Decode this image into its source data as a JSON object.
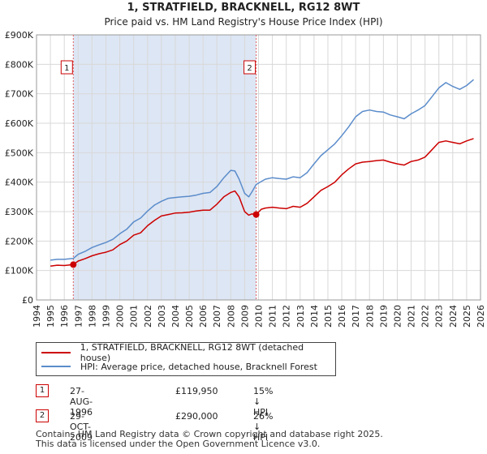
{
  "title": "1, STRATFIELD, BRACKNELL, RG12 8WT",
  "subtitle": "Price paid vs. HM Land Registry's House Price Index (HPI)",
  "chart_data": {
    "type": "line",
    "xlim": [
      1994,
      2026
    ],
    "ylim": [
      0,
      900000
    ],
    "y_ticks": [
      0,
      100000,
      200000,
      300000,
      400000,
      500000,
      600000,
      700000,
      800000,
      900000
    ],
    "y_tick_labels": [
      "£0",
      "£100K",
      "£200K",
      "£300K",
      "£400K",
      "£500K",
      "£600K",
      "£700K",
      "£800K",
      "£900K"
    ],
    "x_ticks": [
      1994,
      1995,
      1996,
      1997,
      1998,
      1999,
      2000,
      2001,
      2002,
      2003,
      2004,
      2005,
      2006,
      2007,
      2008,
      2009,
      2010,
      2011,
      2012,
      2013,
      2014,
      2015,
      2016,
      2017,
      2018,
      2019,
      2020,
      2021,
      2022,
      2023,
      2024,
      2025,
      2026
    ],
    "grid": true,
    "colors": {
      "price_paid": "#cc0000",
      "hpi": "#5b8ccb",
      "shade": "#dde6f4",
      "marker": "#cc0000"
    },
    "series": [
      {
        "name": "1, STRATFIELD, BRACKNELL, RG12 8WT (detached house)",
        "color": "#cc0000",
        "x": [
          1995.0,
          1995.5,
          1996.0,
          1996.65,
          1997.0,
          1997.5,
          1998.0,
          1998.5,
          1999.0,
          1999.5,
          2000.0,
          2000.5,
          2001.0,
          2001.5,
          2002.0,
          2002.5,
          2003.0,
          2003.5,
          2004.0,
          2004.5,
          2005.0,
          2005.5,
          2006.0,
          2006.5,
          2007.0,
          2007.5,
          2008.0,
          2008.3,
          2008.6,
          2009.0,
          2009.3,
          2009.5,
          2009.83,
          2010.2,
          2010.5,
          2011.0,
          2011.5,
          2012.0,
          2012.5,
          2013.0,
          2013.5,
          2014.0,
          2014.5,
          2015.0,
          2015.5,
          2016.0,
          2016.5,
          2017.0,
          2017.5,
          2018.0,
          2018.5,
          2019.0,
          2019.5,
          2020.0,
          2020.5,
          2021.0,
          2021.5,
          2022.0,
          2022.5,
          2023.0,
          2023.5,
          2024.0,
          2024.5,
          2025.0,
          2025.5
        ],
        "values": [
          115000,
          118000,
          117000,
          119950,
          132000,
          140000,
          150000,
          157000,
          162000,
          170000,
          188000,
          200000,
          220000,
          228000,
          252000,
          270000,
          285000,
          290000,
          295000,
          296000,
          298000,
          302000,
          305000,
          305000,
          325000,
          350000,
          365000,
          370000,
          350000,
          300000,
          288000,
          292000,
          290000,
          308000,
          312000,
          315000,
          312000,
          310000,
          318000,
          315000,
          328000,
          350000,
          372000,
          385000,
          400000,
          425000,
          445000,
          462000,
          468000,
          470000,
          473000,
          475000,
          468000,
          462000,
          458000,
          470000,
          475000,
          485000,
          510000,
          535000,
          540000,
          535000,
          530000,
          540000,
          548000
        ]
      },
      {
        "name": "HPI: Average price, detached house, Bracknell Forest",
        "color": "#5b8ccb",
        "x": [
          1995.0,
          1995.5,
          1996.0,
          1996.65,
          1997.0,
          1997.5,
          1998.0,
          1998.5,
          1999.0,
          1999.5,
          2000.0,
          2000.5,
          2001.0,
          2001.5,
          2002.0,
          2002.5,
          2003.0,
          2003.5,
          2004.0,
          2004.5,
          2005.0,
          2005.5,
          2006.0,
          2006.5,
          2007.0,
          2007.5,
          2008.0,
          2008.3,
          2008.6,
          2009.0,
          2009.3,
          2009.5,
          2009.83,
          2010.2,
          2010.5,
          2011.0,
          2011.5,
          2012.0,
          2012.5,
          2013.0,
          2013.5,
          2014.0,
          2014.5,
          2015.0,
          2015.5,
          2016.0,
          2016.5,
          2017.0,
          2017.5,
          2018.0,
          2018.5,
          2019.0,
          2019.5,
          2020.0,
          2020.5,
          2021.0,
          2021.5,
          2022.0,
          2022.5,
          2023.0,
          2023.5,
          2024.0,
          2024.5,
          2025.0,
          2025.5
        ],
        "values": [
          135000,
          138000,
          138000,
          141000,
          155000,
          165000,
          178000,
          187000,
          195000,
          206000,
          225000,
          240000,
          265000,
          278000,
          302000,
          322000,
          335000,
          345000,
          348000,
          350000,
          352000,
          356000,
          362000,
          365000,
          385000,
          415000,
          440000,
          438000,
          410000,
          362000,
          350000,
          365000,
          392000,
          402000,
          410000,
          415000,
          412000,
          410000,
          418000,
          415000,
          432000,
          462000,
          490000,
          510000,
          530000,
          558000,
          588000,
          622000,
          640000,
          645000,
          640000,
          638000,
          628000,
          622000,
          615000,
          632000,
          645000,
          660000,
          690000,
          720000,
          738000,
          725000,
          715000,
          728000,
          748000
        ]
      }
    ],
    "sales": [
      {
        "label": "1",
        "x": 1996.65,
        "value": 119950
      },
      {
        "label": "2",
        "x": 2009.83,
        "value": 290000
      }
    ]
  },
  "legend": {
    "price_paid": "1, STRATFIELD, BRACKNELL, RG12 8WT (detached house)",
    "hpi": "HPI: Average price, detached house, Bracknell Forest"
  },
  "transactions": [
    {
      "label": "1",
      "date": "27-AUG-1996",
      "price": "£119,950",
      "delta": "15% ↓ HPI"
    },
    {
      "label": "2",
      "date": "29-OCT-2009",
      "price": "£290,000",
      "delta": "26% ↓ HPI"
    }
  ],
  "footer": {
    "line1": "Contains HM Land Registry data © Crown copyright and database right 2025.",
    "line2": "This data is licensed under the Open Government Licence v3.0."
  }
}
